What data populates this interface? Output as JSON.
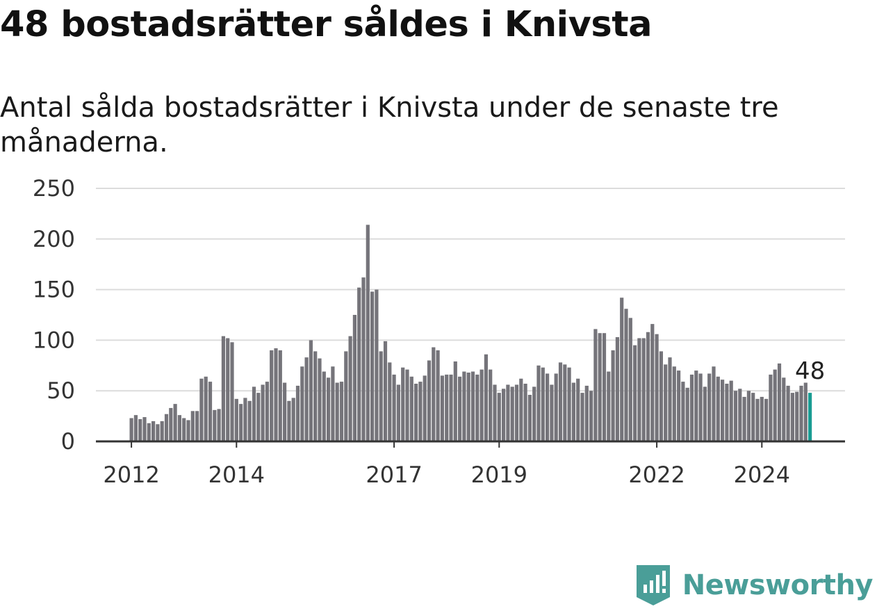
{
  "header": {
    "title": "48 bostadsrätter såldes i Knivsta",
    "subtitle": "Antal sålda bostadsrätter i Knivsta under de senaste tre månaderna."
  },
  "brand": {
    "name": "Newsworthy",
    "icon": "newsworthy-logo-icon",
    "color": "#4a9e98"
  },
  "colors": {
    "bar": "#75747a",
    "highlight": "#1a9c93",
    "grid": "#dcdcdc",
    "axis": "#333333"
  },
  "chart_data": {
    "type": "bar",
    "title": "",
    "xlabel": "",
    "ylabel": "",
    "ylim": [
      0,
      250
    ],
    "yticks": [
      0,
      50,
      100,
      150,
      200,
      250
    ],
    "grid": true,
    "start": "2012-01",
    "xticks": [
      {
        "label": "2012",
        "date": "2012-01"
      },
      {
        "label": "2014",
        "date": "2014-01"
      },
      {
        "label": "2017",
        "date": "2017-01"
      },
      {
        "label": "2019",
        "date": "2019-01"
      },
      {
        "label": "2022",
        "date": "2022-01"
      },
      {
        "label": "2024",
        "date": "2024-01"
      }
    ],
    "values": [
      23,
      26,
      22,
      24,
      18,
      20,
      17,
      20,
      27,
      33,
      37,
      26,
      23,
      21,
      30,
      30,
      62,
      64,
      59,
      31,
      32,
      104,
      102,
      98,
      42,
      37,
      43,
      40,
      54,
      48,
      56,
      59,
      90,
      92,
      90,
      58,
      40,
      43,
      55,
      74,
      83,
      100,
      89,
      82,
      69,
      63,
      74,
      58,
      59,
      89,
      104,
      125,
      152,
      162,
      214,
      148,
      150,
      89,
      99,
      78,
      66,
      56,
      73,
      71,
      64,
      57,
      59,
      65,
      80,
      93,
      90,
      65,
      66,
      66,
      79,
      64,
      69,
      68,
      69,
      66,
      71,
      86,
      71,
      56,
      48,
      52,
      56,
      54,
      56,
      62,
      57,
      46,
      54,
      75,
      73,
      67,
      56,
      67,
      78,
      76,
      73,
      58,
      62,
      48,
      55,
      50,
      111,
      107,
      107,
      69,
      90,
      103,
      142,
      131,
      122,
      95,
      102,
      102,
      108,
      116,
      106,
      89,
      76,
      83,
      74,
      70,
      59,
      53,
      66,
      70,
      67,
      54,
      67,
      74,
      64,
      61,
      57,
      60,
      50,
      52,
      44,
      50,
      48,
      42,
      44,
      42,
      66,
      71,
      77,
      63,
      55,
      48,
      49,
      55,
      58,
      48
    ],
    "highlight_last": true,
    "last_value_label": "48"
  }
}
